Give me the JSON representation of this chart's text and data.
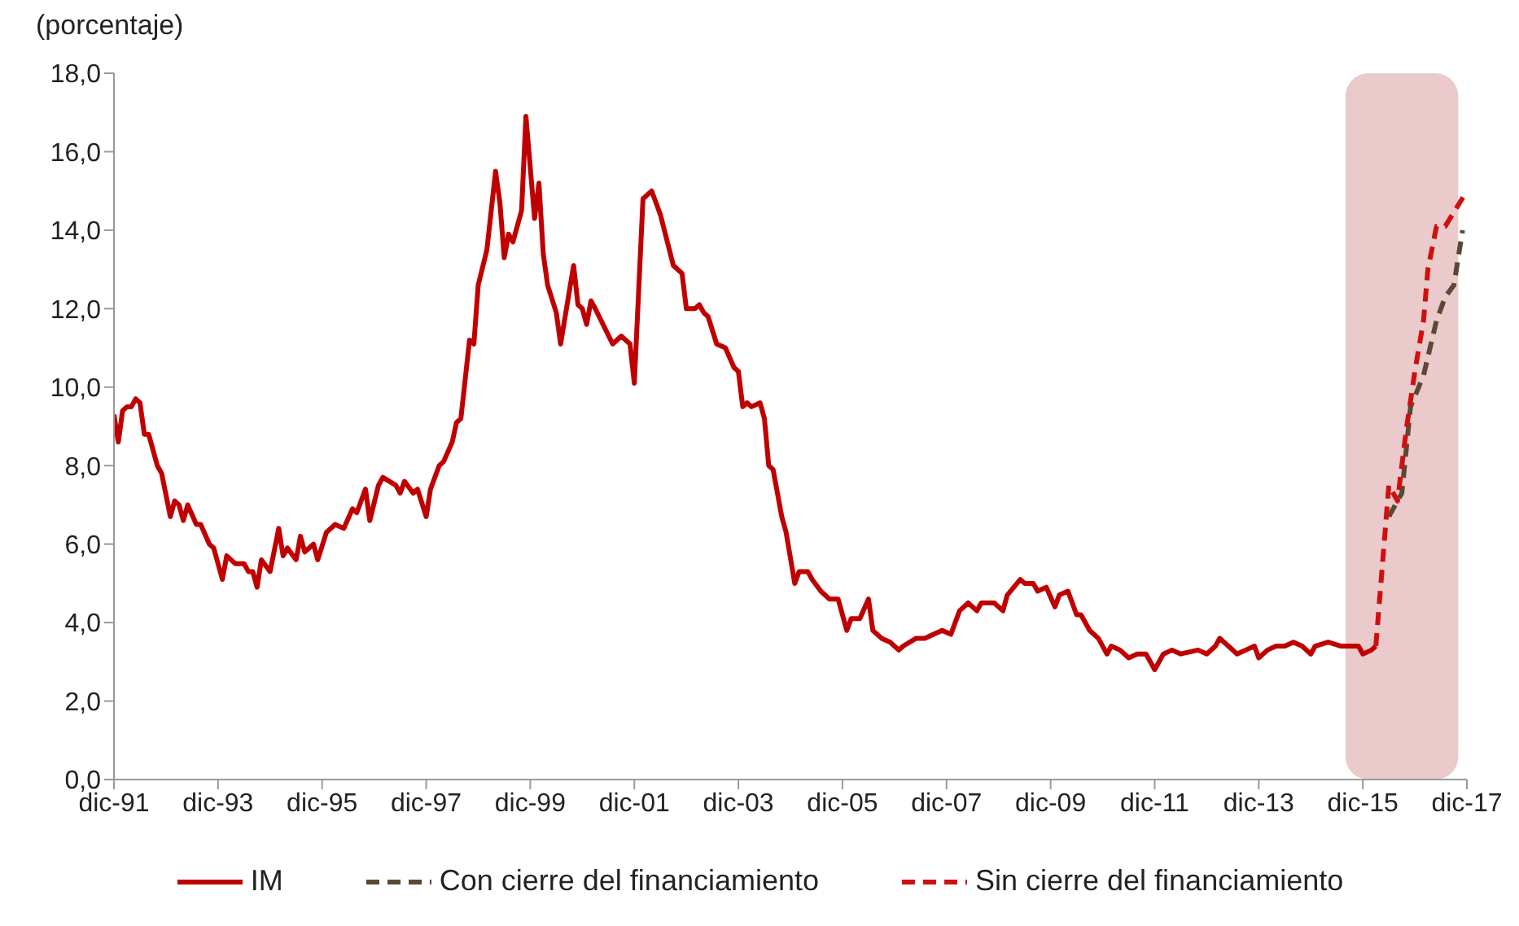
{
  "chart_data": {
    "type": "line",
    "ylabel": "(porcentaje)",
    "legend": "bottom",
    "grid": false,
    "xlim": [
      "1991-12",
      "2017-12"
    ],
    "xticks": [
      {
        "value": "1991-12",
        "label": "dic-91"
      },
      {
        "value": "1993-12",
        "label": "dic-93"
      },
      {
        "value": "1995-12",
        "label": "dic-95"
      },
      {
        "value": "1997-12",
        "label": "dic-97"
      },
      {
        "value": "1999-12",
        "label": "dic-99"
      },
      {
        "value": "2001-12",
        "label": "dic-01"
      },
      {
        "value": "2003-12",
        "label": "dic-03"
      },
      {
        "value": "2005-12",
        "label": "dic-05"
      },
      {
        "value": "2007-12",
        "label": "dic-07"
      },
      {
        "value": "2009-12",
        "label": "dic-09"
      },
      {
        "value": "2011-12",
        "label": "dic-11"
      },
      {
        "value": "2013-12",
        "label": "dic-13"
      },
      {
        "value": "2015-12",
        "label": "dic-15"
      },
      {
        "value": "2017-12",
        "label": "dic-17"
      }
    ],
    "ylim": [
      0,
      18
    ],
    "yticks": [
      {
        "value": 0,
        "label": "0,0"
      },
      {
        "value": 2,
        "label": "2,0"
      },
      {
        "value": 4,
        "label": "4,0"
      },
      {
        "value": 6,
        "label": "6,0"
      },
      {
        "value": 8,
        "label": "8,0"
      },
      {
        "value": 10,
        "label": "10,0"
      },
      {
        "value": 12,
        "label": "12,0"
      },
      {
        "value": 14,
        "label": "14,0"
      },
      {
        "value": 16,
        "label": "16,0"
      },
      {
        "value": 18,
        "label": "18,0"
      }
    ],
    "bands": [
      {
        "axis": "x",
        "from": "2015-08",
        "to": "2017-10",
        "color": "#e8c4c4"
      }
    ],
    "series": [
      {
        "name": "IM",
        "color": "#c00000",
        "line_style": "solid",
        "x": [
          "1991-12",
          "1992-01",
          "1992-02",
          "1992-03",
          "1992-04",
          "1992-05",
          "1992-06",
          "1992-07",
          "1992-08",
          "1992-10",
          "1992-11",
          "1993-01",
          "1993-02",
          "1993-03",
          "1993-04",
          "1993-05",
          "1993-07",
          "1993-08",
          "1993-10",
          "1993-11",
          "1994-01",
          "1994-02",
          "1994-04",
          "1994-06",
          "1994-07",
          "1994-08",
          "1994-09",
          "1994-10",
          "1994-12",
          "1995-02",
          "1995-03",
          "1995-04",
          "1995-06",
          "1995-07",
          "1995-08",
          "1995-10",
          "1995-11",
          "1996-01",
          "1996-03",
          "1996-05",
          "1996-07",
          "1996-08",
          "1996-10",
          "1996-11",
          "1997-01",
          "1997-02",
          "1997-05",
          "1997-06",
          "1997-07",
          "1997-09",
          "1997-10",
          "1997-12",
          "1998-01",
          "1998-03",
          "1998-04",
          "1998-06",
          "1998-07",
          "1998-08",
          "1998-10",
          "1998-11",
          "1998-12",
          "1999-02",
          "1999-04",
          "1999-05",
          "1999-06",
          "1999-07",
          "1999-08",
          "1999-10",
          "1999-11",
          "2000-01",
          "2000-02",
          "2000-03",
          "2000-04",
          "2000-06",
          "2000-07",
          "2000-10",
          "2000-11",
          "2000-12",
          "2001-01",
          "2001-02",
          "2001-03",
          "2001-07",
          "2001-09",
          "2001-11",
          "2001-12",
          "2002-02",
          "2002-03",
          "2002-04",
          "2002-06",
          "2002-09",
          "2002-11",
          "2002-12",
          "2003-02",
          "2003-03",
          "2003-04",
          "2003-05",
          "2003-07",
          "2003-09",
          "2003-11",
          "2003-12",
          "2004-01",
          "2004-02",
          "2004-03",
          "2004-05",
          "2004-06",
          "2004-07",
          "2004-08",
          "2004-10",
          "2004-11",
          "2005-01",
          "2005-02",
          "2005-04",
          "2005-05",
          "2005-07",
          "2005-09",
          "2005-11",
          "2006-01",
          "2006-02",
          "2006-04",
          "2006-06",
          "2006-07",
          "2006-09",
          "2006-11",
          "2007-01",
          "2007-02",
          "2007-05",
          "2007-07",
          "2007-09",
          "2007-11",
          "2008-01",
          "2008-03",
          "2008-05",
          "2008-07",
          "2008-08",
          "2008-11",
          "2009-01",
          "2009-02",
          "2009-05",
          "2009-06",
          "2009-08",
          "2009-09",
          "2009-11",
          "2010-01",
          "2010-02",
          "2010-04",
          "2010-06",
          "2010-07",
          "2010-09",
          "2010-11",
          "2011-01",
          "2011-02",
          "2011-04",
          "2011-06",
          "2011-08",
          "2011-10",
          "2011-12",
          "2012-02",
          "2012-04",
          "2012-06",
          "2012-10",
          "2012-12",
          "2013-02",
          "2013-03",
          "2013-05",
          "2013-07",
          "2013-09",
          "2013-11",
          "2013-12",
          "2014-02",
          "2014-04",
          "2014-06",
          "2014-08",
          "2014-10",
          "2014-12",
          "2015-01",
          "2015-04",
          "2015-07",
          "2015-10",
          "2015-11",
          "2015-12",
          "2016-02",
          "2016-03"
        ],
        "values": [
          9.3,
          8.6,
          9.4,
          9.5,
          9.5,
          9.7,
          9.6,
          8.8,
          8.8,
          8.0,
          7.8,
          6.7,
          7.1,
          7.0,
          6.6,
          7.0,
          6.5,
          6.5,
          6.0,
          5.9,
          5.1,
          5.7,
          5.5,
          5.5,
          5.3,
          5.3,
          4.9,
          5.6,
          5.3,
          6.4,
          5.7,
          5.9,
          5.6,
          6.2,
          5.8,
          6.0,
          5.6,
          6.3,
          6.5,
          6.4,
          6.9,
          6.8,
          7.4,
          6.6,
          7.5,
          7.7,
          7.5,
          7.3,
          7.6,
          7.3,
          7.4,
          6.7,
          7.4,
          8.0,
          8.1,
          8.6,
          9.1,
          9.2,
          11.2,
          11.1,
          12.6,
          13.5,
          15.5,
          14.7,
          13.3,
          13.9,
          13.7,
          14.5,
          16.9,
          14.3,
          15.2,
          13.4,
          12.6,
          11.9,
          11.1,
          13.1,
          12.1,
          12.0,
          11.6,
          12.2,
          12.0,
          11.1,
          11.3,
          11.1,
          10.1,
          14.8,
          14.9,
          15.0,
          14.4,
          13.1,
          12.9,
          12.0,
          12.0,
          12.1,
          11.9,
          11.8,
          11.1,
          11.0,
          10.5,
          10.4,
          9.5,
          9.6,
          9.5,
          9.6,
          9.2,
          8.0,
          7.9,
          6.7,
          6.3,
          5.0,
          5.3,
          5.3,
          5.1,
          4.8,
          4.6,
          4.6,
          3.8,
          4.1,
          4.1,
          4.6,
          3.8,
          3.6,
          3.5,
          3.3,
          3.4,
          3.6,
          3.6,
          3.7,
          3.8,
          3.7,
          4.3,
          4.5,
          4.3,
          4.5,
          4.5,
          4.3,
          4.7,
          5.1,
          5.0,
          5.0,
          4.8,
          4.9,
          4.4,
          4.7,
          4.8,
          4.2,
          4.2,
          3.8,
          3.6,
          3.2,
          3.4,
          3.3,
          3.1,
          3.2,
          3.2,
          2.8,
          3.2,
          3.3,
          3.2,
          3.3,
          3.2,
          3.4,
          3.6,
          3.4,
          3.2,
          3.3,
          3.4,
          3.1,
          3.3,
          3.4,
          3.4,
          3.5,
          3.4,
          3.2,
          3.4,
          3.5,
          3.4,
          3.4,
          3.4,
          3.2,
          3.3,
          3.4
        ]
      },
      {
        "name": "Con cierre del financiamiento",
        "color": "#5a4a35",
        "line_style": "dashed",
        "x": [
          "2016-06",
          "2016-09",
          "2016-11",
          "2017-02",
          "2017-05",
          "2017-07",
          "2017-09",
          "2017-11"
        ],
        "values": [
          6.7,
          7.3,
          9.5,
          10.3,
          11.7,
          12.3,
          12.6,
          14.0
        ]
      },
      {
        "name": "Sin cierre del financiamiento",
        "color": "#d01010",
        "line_style": "dashed",
        "x": [
          "2016-03",
          "2016-06",
          "2016-08",
          "2016-10",
          "2016-12",
          "2017-02",
          "2017-03",
          "2017-05",
          "2017-07",
          "2017-12"
        ],
        "values": [
          3.4,
          7.5,
          7.1,
          8.9,
          10.4,
          11.7,
          13.0,
          14.1,
          14.1,
          15.0
        ]
      }
    ]
  }
}
